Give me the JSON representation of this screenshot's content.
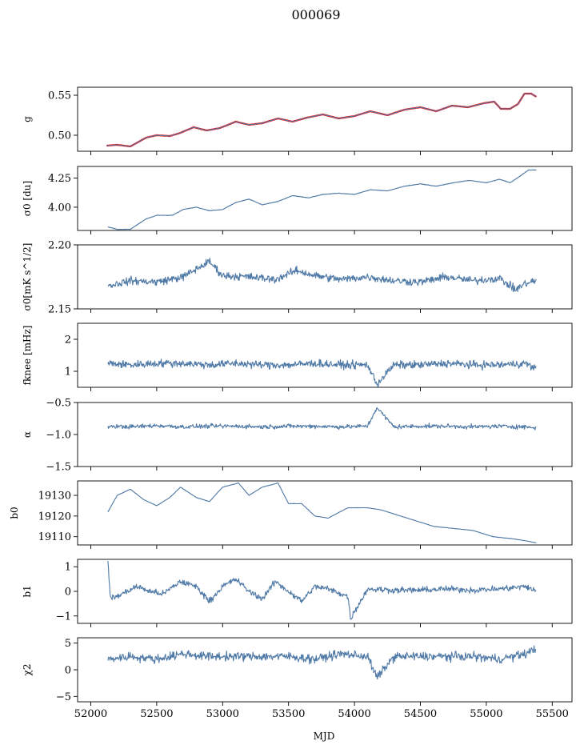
{
  "figure": {
    "title": "000069",
    "xlabel": "MJD",
    "xlim": [
      51900,
      55650
    ],
    "xticks": [
      52000,
      52500,
      53000,
      53500,
      54000,
      54500,
      55000,
      55500
    ]
  },
  "chart_data": [
    {
      "type": "line",
      "name": "g",
      "ylabel": "g",
      "ylim": [
        0.48,
        0.56
      ],
      "yticks": [
        0.5,
        0.55
      ],
      "yticklabels": [
        "0.50",
        "0.55"
      ],
      "x": [
        52120,
        52200,
        52300,
        52420,
        52500,
        52600,
        52680,
        52780,
        52880,
        52980,
        53100,
        53200,
        53300,
        53420,
        53530,
        53640,
        53760,
        53880,
        54000,
        54120,
        54250,
        54380,
        54500,
        54620,
        54740,
        54860,
        54980,
        55060,
        55110,
        55180,
        55240,
        55290,
        55340,
        55380
      ],
      "values": [
        0.487,
        0.488,
        0.486,
        0.497,
        0.5,
        0.499,
        0.503,
        0.51,
        0.506,
        0.509,
        0.517,
        0.513,
        0.515,
        0.521,
        0.517,
        0.522,
        0.526,
        0.521,
        0.524,
        0.53,
        0.525,
        0.532,
        0.535,
        0.53,
        0.537,
        0.535,
        0.54,
        0.542,
        0.533,
        0.533,
        0.539,
        0.552,
        0.552,
        0.548
      ],
      "series": [
        {
          "name": "",
          "color": "#4f79a6"
        },
        {
          "name": "",
          "color": "#ff0000"
        }
      ]
    },
    {
      "type": "line",
      "name": "sigma0-du",
      "ylabel": "σ0 [du]",
      "ylim": [
        3.8,
        4.35
      ],
      "yticks": [
        4.0,
        4.25
      ],
      "yticklabels": [
        "4.00",
        "4.25"
      ],
      "x": [
        52130,
        52200,
        52300,
        52420,
        52500,
        52620,
        52700,
        52800,
        52900,
        53000,
        53100,
        53200,
        53300,
        53420,
        53530,
        53650,
        53760,
        53880,
        54000,
        54120,
        54250,
        54380,
        54500,
        54620,
        54750,
        54870,
        55000,
        55100,
        55180,
        55260,
        55320,
        55380
      ],
      "values": [
        3.83,
        3.81,
        3.81,
        3.9,
        3.93,
        3.93,
        3.98,
        4.0,
        3.97,
        3.98,
        4.04,
        4.07,
        4.02,
        4.05,
        4.1,
        4.08,
        4.11,
        4.12,
        4.11,
        4.15,
        4.14,
        4.18,
        4.2,
        4.18,
        4.21,
        4.23,
        4.21,
        4.24,
        4.21,
        4.27,
        4.32,
        4.32
      ],
      "series": [
        {
          "name": "",
          "color": "#4f79a6"
        }
      ]
    },
    {
      "type": "line",
      "name": "sigma0-mk",
      "ylabel": "σ0[mK s^1/2]",
      "ylim": [
        2.15,
        2.2
      ],
      "yticks": [
        2.15,
        2.2
      ],
      "yticklabels": [
        "2.15",
        "2.20"
      ],
      "x": [
        52130,
        52300,
        52500,
        52700,
        52900,
        53000,
        53200,
        53400,
        53560,
        53700,
        53900,
        54100,
        54300,
        54500,
        54700,
        54900,
        55100,
        55220,
        55300,
        55380
      ],
      "values": [
        2.168,
        2.172,
        2.171,
        2.175,
        2.187,
        2.176,
        2.175,
        2.173,
        2.18,
        2.176,
        2.173,
        2.175,
        2.172,
        2.171,
        2.175,
        2.172,
        2.174,
        2.165,
        2.17,
        2.172
      ],
      "series": [
        {
          "name": "",
          "color": "#4f79a6"
        }
      ]
    },
    {
      "type": "line",
      "name": "fknee",
      "ylabel": "fknee [mHz]",
      "ylim": [
        0.5,
        2.5
      ],
      "yticks": [
        1,
        2
      ],
      "yticklabels": [
        "1",
        "2"
      ],
      "x": [
        52130,
        52300,
        52500,
        52700,
        52900,
        53100,
        53300,
        53500,
        53700,
        53900,
        54100,
        54170,
        54300,
        54500,
        54700,
        54900,
        55100,
        55300,
        55380
      ],
      "values": [
        1.25,
        1.2,
        1.25,
        1.25,
        1.2,
        1.25,
        1.2,
        1.2,
        1.25,
        1.2,
        1.2,
        0.6,
        1.2,
        1.2,
        1.25,
        1.2,
        1.2,
        1.25,
        1.05
      ],
      "series": [
        {
          "name": "",
          "color": "#4f79a6"
        }
      ]
    },
    {
      "type": "line",
      "name": "alpha",
      "ylabel": "α",
      "ylim": [
        -1.5,
        -0.5
      ],
      "yticks": [
        -1.5,
        -1.0,
        -0.5
      ],
      "yticklabels": [
        "−1.5",
        "−1.0",
        "−0.5"
      ],
      "x": [
        52130,
        52300,
        52500,
        52700,
        52900,
        53100,
        53300,
        53500,
        53700,
        53900,
        54100,
        54170,
        54300,
        54500,
        54700,
        54900,
        55100,
        55300,
        55380
      ],
      "values": [
        -0.87,
        -0.88,
        -0.86,
        -0.88,
        -0.87,
        -0.87,
        -0.88,
        -0.87,
        -0.87,
        -0.88,
        -0.87,
        -0.58,
        -0.88,
        -0.87,
        -0.87,
        -0.88,
        -0.87,
        -0.88,
        -0.9
      ],
      "series": [
        {
          "name": "",
          "color": "#4f79a6"
        }
      ]
    },
    {
      "type": "line",
      "name": "b0",
      "ylabel": "b0",
      "ylim": [
        19106,
        19137
      ],
      "yticks": [
        19110,
        19120,
        19130
      ],
      "yticklabels": [
        "19110",
        "19120",
        "19130"
      ],
      "x": [
        52130,
        52200,
        52300,
        52400,
        52500,
        52600,
        52680,
        52800,
        52900,
        53000,
        53120,
        53200,
        53300,
        53420,
        53500,
        53600,
        53700,
        53800,
        53950,
        54100,
        54200,
        54300,
        54450,
        54600,
        54750,
        54900,
        55050,
        55200,
        55300,
        55380
      ],
      "values": [
        19122,
        19130,
        19133,
        19128,
        19125,
        19129,
        19134,
        19129,
        19127,
        19134,
        19136,
        19130,
        19134,
        19136,
        19126,
        19126,
        19120,
        19119,
        19124,
        19124,
        19123,
        19121,
        19118,
        19115,
        19114,
        19113,
        19110,
        19109,
        19108,
        19107
      ],
      "series": [
        {
          "name": "",
          "color": "#4f79a6"
        }
      ]
    },
    {
      "type": "line",
      "name": "b1",
      "ylabel": "b1",
      "ylim": [
        -1.3,
        1.3
      ],
      "yticks": [
        -1,
        0,
        1
      ],
      "yticklabels": [
        "−1",
        "0",
        "1"
      ],
      "x": [
        52130,
        52150,
        52200,
        52350,
        52450,
        52550,
        52680,
        52800,
        52900,
        53000,
        53100,
        53200,
        53300,
        53400,
        53500,
        53600,
        53700,
        53800,
        53950,
        53970,
        54100,
        54300,
        54500,
        54700,
        54900,
        55100,
        55300,
        55380
      ],
      "values": [
        1.2,
        -0.3,
        -0.2,
        0.2,
        0.0,
        -0.1,
        0.4,
        0.2,
        -0.4,
        0.2,
        0.5,
        0.0,
        -0.3,
        0.4,
        0.0,
        -0.4,
        0.2,
        0.1,
        -0.2,
        -1.1,
        0.1,
        0.05,
        0.05,
        0.1,
        0.05,
        0.1,
        0.2,
        0.0
      ],
      "series": [
        {
          "name": "",
          "color": "#4f79a6"
        }
      ]
    },
    {
      "type": "line",
      "name": "chi2",
      "ylabel": "χ2",
      "ylim": [
        -6,
        6
      ],
      "yticks": [
        -5,
        0,
        5
      ],
      "yticklabels": [
        "−5",
        "0",
        "5"
      ],
      "x": [
        52130,
        52300,
        52500,
        52700,
        52900,
        53100,
        53300,
        53500,
        53700,
        53900,
        54100,
        54170,
        54300,
        54500,
        54700,
        54900,
        55100,
        55300,
        55380
      ],
      "values": [
        2.0,
        2.5,
        2.0,
        3.0,
        2.5,
        2.5,
        2.5,
        2.5,
        2.0,
        3.0,
        2.5,
        -1.5,
        2.5,
        2.5,
        2.5,
        2.5,
        2.0,
        3.0,
        4.0
      ],
      "series": [
        {
          "name": "",
          "color": "#4f79a6"
        }
      ]
    }
  ]
}
